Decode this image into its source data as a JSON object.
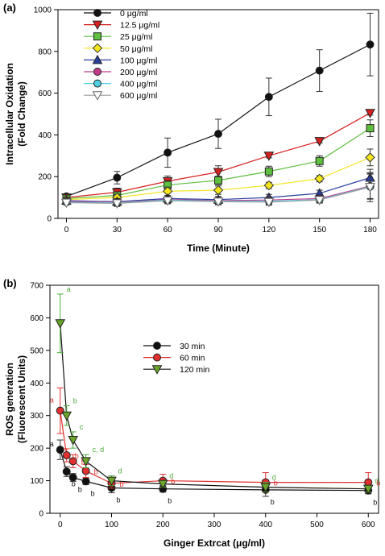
{
  "chart_data": [
    {
      "type": "line",
      "panel_label": "(a)",
      "xlabel": "Time (Minute)",
      "ylabel": [
        "Intracellular Oxidation",
        "(Fold Change)"
      ],
      "xlim": [
        -5,
        185
      ],
      "ylim": [
        0,
        1000
      ],
      "xticks": [
        0,
        30,
        60,
        90,
        120,
        150,
        180
      ],
      "yticks": [
        0,
        200,
        400,
        600,
        800,
        1000
      ],
      "legend_position": "top-left",
      "x": [
        0,
        30,
        60,
        90,
        120,
        150,
        180
      ],
      "series": [
        {
          "name": "0 μg/ml",
          "marker": "circle",
          "color": "#111111",
          "line": "#111111",
          "values": [
            105,
            195,
            315,
            405,
            582,
            708,
            833
          ],
          "err": [
            10,
            30,
            70,
            70,
            90,
            100,
            150
          ]
        },
        {
          "name": "12.5 μg/ml",
          "marker": "triangle-down",
          "color": "#d62020",
          "line": "#d62020",
          "values": [
            100,
            125,
            178,
            222,
            300,
            370,
            505
          ],
          "err": [
            8,
            20,
            25,
            30,
            10,
            8,
            10
          ]
        },
        {
          "name": "25 μg/ml",
          "marker": "square",
          "color": "#5fbf3f",
          "line": "#5fbf3f",
          "values": [
            95,
            110,
            160,
            182,
            225,
            275,
            432
          ],
          "err": [
            8,
            15,
            20,
            20,
            25,
            25,
            40
          ]
        },
        {
          "name": "50 μg/ml",
          "marker": "diamond",
          "color": "#f5e51a",
          "line": "#f5e51a",
          "values": [
            90,
            100,
            130,
            135,
            158,
            190,
            292
          ],
          "err": [
            8,
            15,
            20,
            20,
            15,
            15,
            40
          ]
        },
        {
          "name": "100 μg/ml",
          "marker": "triangle-up",
          "color": "#2a3f9e",
          "line": "#2a3f9e",
          "values": [
            85,
            80,
            95,
            90,
            100,
            120,
            195
          ],
          "err": [
            10,
            15,
            15,
            15,
            15,
            15,
            40
          ]
        },
        {
          "name": "200 μg/ml",
          "marker": "circle",
          "color": "#c23a8c",
          "line": "#c23a8c",
          "values": [
            82,
            78,
            90,
            85,
            88,
            95,
            155
          ],
          "err": [
            10,
            15,
            15,
            15,
            15,
            15,
            60
          ]
        },
        {
          "name": "400 μg/ml",
          "marker": "circle",
          "color": "#4fd0e0",
          "line": "#4fd0e0",
          "values": [
            78,
            75,
            88,
            82,
            82,
            90,
            152
          ],
          "err": [
            10,
            15,
            15,
            15,
            15,
            15,
            60
          ]
        },
        {
          "name": "600 μg/ml",
          "marker": "triangle-down",
          "color": "#ffffff",
          "line": "#9a9a9a",
          "values": [
            75,
            72,
            85,
            80,
            78,
            88,
            150
          ],
          "err": [
            10,
            15,
            15,
            15,
            15,
            15,
            70
          ]
        }
      ]
    },
    {
      "type": "line",
      "panel_label": "(b)",
      "xlabel": "Ginger Extrcat (μg/ml)",
      "ylabel": [
        "ROS generation",
        "(Fluorescent Units)"
      ],
      "xlim": [
        -20,
        620
      ],
      "ylim": [
        0,
        700
      ],
      "xticks": [
        0,
        100,
        200,
        300,
        400,
        500,
        600
      ],
      "yticks": [
        0,
        100,
        200,
        300,
        400,
        500,
        600,
        700
      ],
      "legend_position": "center",
      "x": [
        0,
        12.5,
        25,
        50,
        100,
        200,
        400,
        600
      ],
      "series": [
        {
          "name": "30 min",
          "marker": "circle",
          "color": "#111111",
          "line": "#111111",
          "label_color": "#111111",
          "values": [
            195,
            128,
            110,
            98,
            78,
            75,
            72,
            70
          ],
          "err": [
            30,
            15,
            12,
            10,
            15,
            10,
            20,
            10
          ],
          "sig": [
            "a",
            "b",
            "b",
            "b",
            "b",
            "b",
            "b",
            "b"
          ],
          "sig_side": "left-first"
        },
        {
          "name": "60 min",
          "marker": "circle",
          "color": "#e03030",
          "line": "#e03030",
          "label_color": "#e03030",
          "values": [
            315,
            178,
            160,
            130,
            92,
            100,
            95,
            95
          ],
          "err": [
            70,
            20,
            20,
            20,
            15,
            20,
            30,
            30
          ],
          "sig": [
            "a",
            "b",
            "b",
            "b",
            "b",
            "b",
            "b",
            "b"
          ],
          "sig_side": "mixed"
        },
        {
          "name": "120 min",
          "marker": "triangle-down",
          "color": "#6aa52a",
          "line": "#111111",
          "label_color": "#4cab3c",
          "values": [
            583,
            300,
            225,
            160,
            100,
            90,
            80,
            75
          ],
          "err": [
            90,
            30,
            25,
            20,
            15,
            10,
            15,
            10
          ],
          "sig": [
            "a",
            "b",
            "c",
            "c, d",
            "d",
            "d",
            "d",
            "d"
          ],
          "sig_side": "above"
        }
      ]
    }
  ]
}
